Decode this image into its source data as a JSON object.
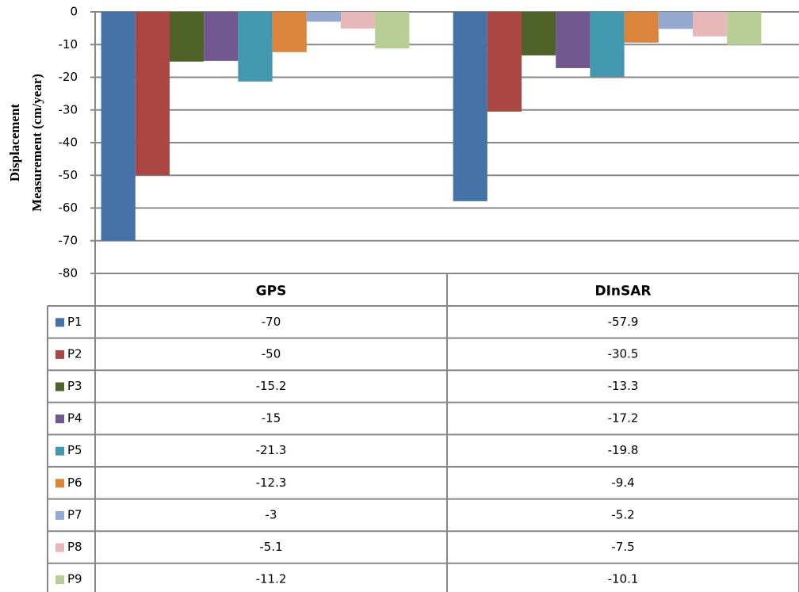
{
  "chart_data": {
    "type": "bar",
    "y_label": [
      "Displacement",
      "Measurement (cm/year)"
    ],
    "categories": [
      "GPS",
      "DInSAR"
    ],
    "series": [
      {
        "name": "P1",
        "color": "#4572a7",
        "values": [
          -70,
          -57.9
        ]
      },
      {
        "name": "P2",
        "color": "#aa4643",
        "values": [
          -50,
          -30.5
        ]
      },
      {
        "name": "P3",
        "color": "#4f6228",
        "values": [
          -15.2,
          -13.3
        ]
      },
      {
        "name": "P4",
        "color": "#71588f",
        "values": [
          -15,
          -17.2
        ]
      },
      {
        "name": "P5",
        "color": "#4198af",
        "values": [
          -21.3,
          -19.8
        ]
      },
      {
        "name": "P6",
        "color": "#db843d",
        "values": [
          -12.3,
          -9.4
        ]
      },
      {
        "name": "P7",
        "color": "#93a9cf",
        "values": [
          -3,
          -5.2
        ]
      },
      {
        "name": "P8",
        "color": "#e6b9b8",
        "values": [
          -5.1,
          -7.5
        ]
      },
      {
        "name": "P9",
        "color": "#b9cd96",
        "values": [
          -11.2,
          -10.1
        ]
      }
    ],
    "ylim": [
      -80,
      0
    ],
    "yticks": [
      0,
      -10,
      -20,
      -30,
      -40,
      -50,
      -60,
      -70,
      -80
    ],
    "grid": true,
    "legend": "table"
  }
}
